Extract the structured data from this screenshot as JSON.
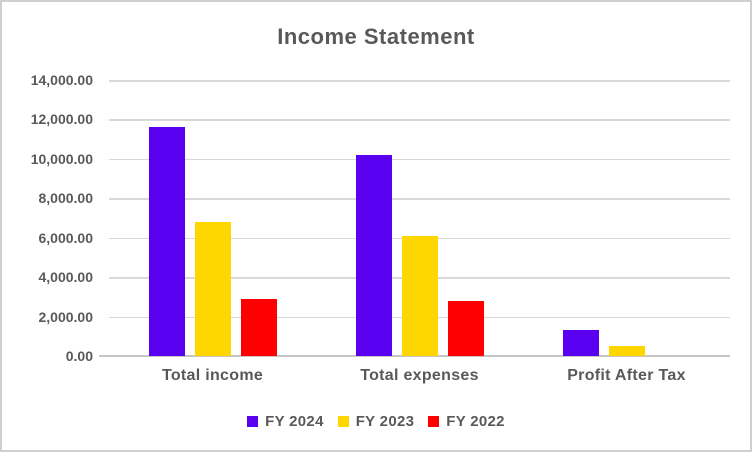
{
  "window": {
    "background_color": "#FFFFFF",
    "border_color": "#D0CECE",
    "text_color": "#595959",
    "gridline_color": "#D9D9D9",
    "axis_line_color": "#C6C6C6"
  },
  "chart_data": {
    "type": "bar",
    "title": "Income Statement",
    "categories": [
      "Total income",
      "Total expenses",
      "Profit After Tax"
    ],
    "series": [
      {
        "name": "FY 2024",
        "color": "#5A00F0",
        "values": [
          11600,
          10200,
          1300
        ]
      },
      {
        "name": "FY 2023",
        "color": "#FFD600",
        "values": [
          6800,
          6100,
          500
        ]
      },
      {
        "name": "FY 2022",
        "color": "#FF0000",
        "values": [
          2900,
          2800,
          0
        ]
      }
    ],
    "ylim": [
      0,
      14000
    ],
    "ytick_step": 2000,
    "ytick_labels": [
      "0.00",
      "2,000.00",
      "4,000.00",
      "6,000.00",
      "8,000.00",
      "10,000.00",
      "12,000.00",
      "14,000.00"
    ],
    "xlabel": "",
    "ylabel": "",
    "grid": true,
    "legend_position": "bottom"
  }
}
